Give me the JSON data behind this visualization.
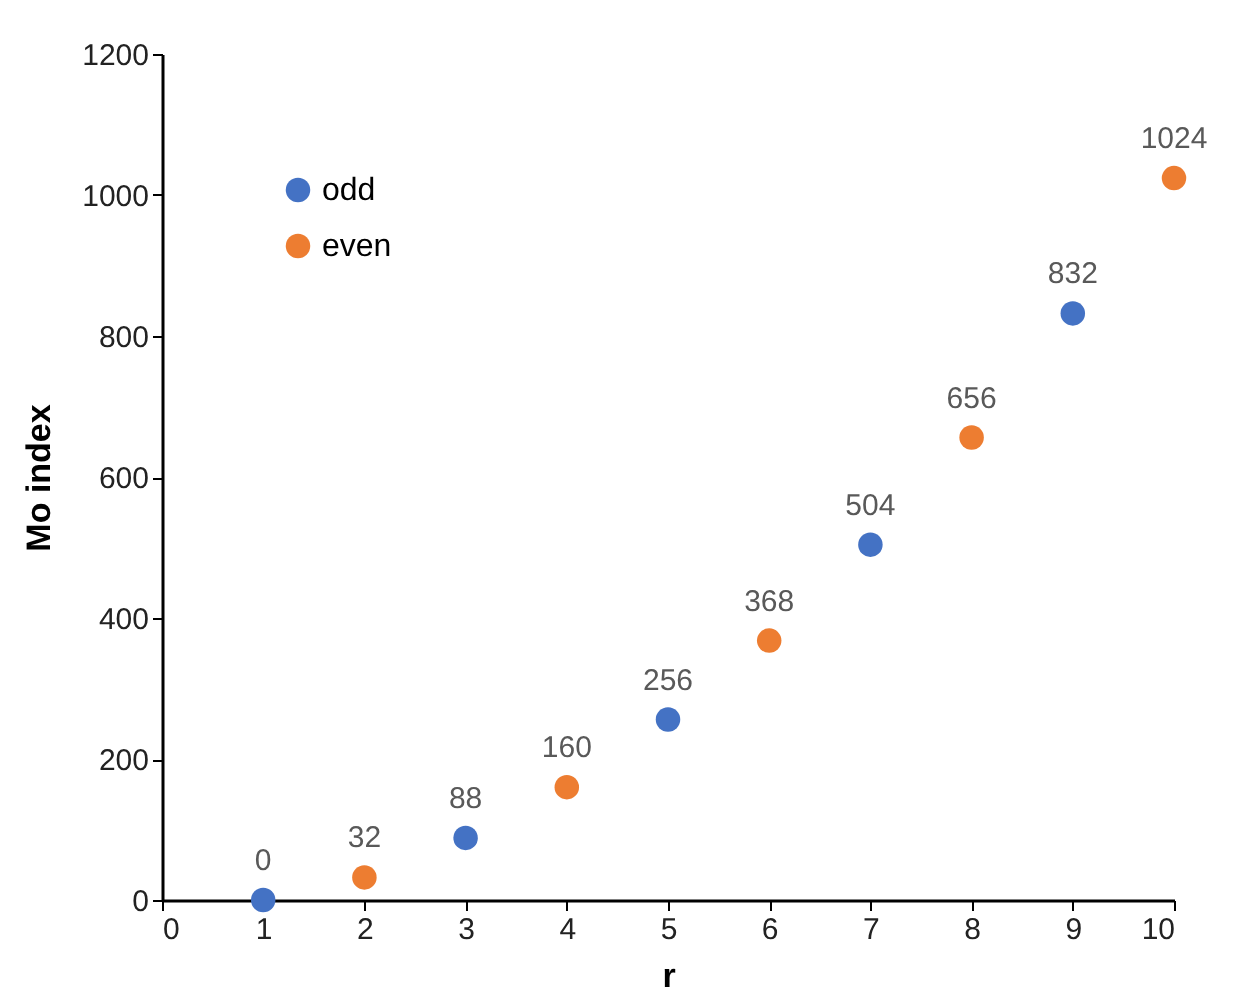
{
  "chart_data": {
    "type": "scatter",
    "xlabel": "r",
    "ylabel": "Mo index",
    "xlim": [
      0,
      10
    ],
    "xticks": [
      0,
      1,
      2,
      3,
      4,
      5,
      6,
      7,
      8,
      9,
      10
    ],
    "ylim": [
      0,
      1200
    ],
    "yticks": [
      0,
      200,
      400,
      600,
      800,
      1000,
      1200
    ],
    "grid": false,
    "legend": "top left",
    "marker": "circle",
    "data_labels": true,
    "series": [
      {
        "name": "odd",
        "color": "#4472c4",
        "x": [
          1,
          3,
          5,
          7,
          9
        ],
        "values": [
          0,
          88,
          256,
          504,
          832
        ]
      },
      {
        "name": "even",
        "color": "#ed7d31",
        "x": [
          2,
          4,
          6,
          8,
          10
        ],
        "values": [
          32,
          160,
          368,
          656,
          1024
        ]
      }
    ]
  }
}
